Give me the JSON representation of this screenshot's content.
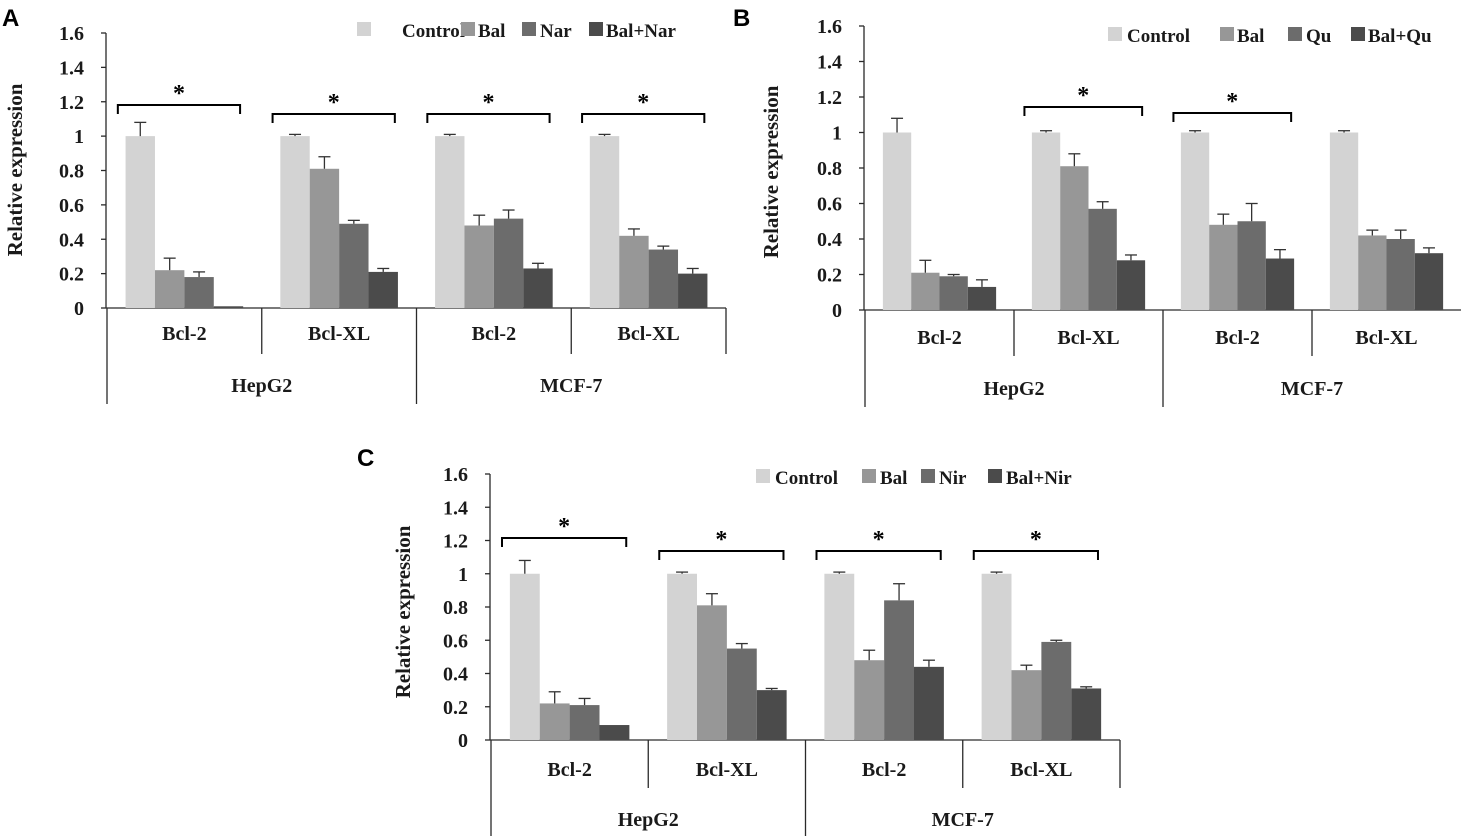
{
  "chart_data": [
    {
      "panel": "A",
      "type": "bar",
      "ylabel": "Relative expression",
      "ylim": [
        0,
        1.6
      ],
      "yticks": [
        "0",
        "0.2",
        "0.4",
        "0.6",
        "0.8",
        "1",
        "1.2",
        "1.4",
        "1.6"
      ],
      "legend": [
        "Control",
        "Bal",
        "Nar",
        "Bal+Nar"
      ],
      "groups": [
        "HepG2",
        "MCF-7"
      ],
      "categories": [
        "Bcl-2",
        "Bcl-XL",
        "Bcl-2",
        "Bcl-XL"
      ],
      "values": [
        [
          1.0,
          0.22,
          0.18,
          0.01
        ],
        [
          1.0,
          0.81,
          0.49,
          0.21
        ],
        [
          1.0,
          0.48,
          0.52,
          0.23
        ],
        [
          1.0,
          0.42,
          0.34,
          0.2
        ]
      ],
      "errors": [
        [
          0.08,
          0.07,
          0.03,
          0.0
        ],
        [
          0.01,
          0.07,
          0.02,
          0.02
        ],
        [
          0.01,
          0.06,
          0.05,
          0.03
        ],
        [
          0.01,
          0.04,
          0.02,
          0.03
        ]
      ],
      "significance": [
        "*",
        "*",
        "*",
        "*"
      ]
    },
    {
      "panel": "B",
      "type": "bar",
      "ylabel": "Relative expression",
      "ylim": [
        0,
        1.6
      ],
      "yticks": [
        "0",
        "0.2",
        "0.4",
        "0.6",
        "0.8",
        "1",
        "1.2",
        "1.4",
        "1.6"
      ],
      "legend": [
        "Control",
        "Bal",
        "Qu",
        "Bal+Qu"
      ],
      "groups": [
        "HepG2",
        "MCF-7"
      ],
      "categories": [
        "Bcl-2",
        "Bcl-XL",
        "Bcl-2",
        "Bcl-XL"
      ],
      "values": [
        [
          1.0,
          0.21,
          0.19,
          0.13
        ],
        [
          1.0,
          0.81,
          0.57,
          0.28
        ],
        [
          1.0,
          0.48,
          0.5,
          0.29
        ],
        [
          1.0,
          0.42,
          0.4,
          0.32
        ]
      ],
      "errors": [
        [
          0.08,
          0.07,
          0.01,
          0.04
        ],
        [
          0.01,
          0.07,
          0.04,
          0.03
        ],
        [
          0.01,
          0.06,
          0.1,
          0.05
        ],
        [
          0.01,
          0.03,
          0.05,
          0.03
        ]
      ],
      "significance": [
        "",
        "*",
        "*",
        ""
      ]
    },
    {
      "panel": "C",
      "type": "bar",
      "ylabel": "Relative expression",
      "ylim": [
        0,
        1.6
      ],
      "yticks": [
        "0",
        "0.2",
        "0.4",
        "0.6",
        "0.8",
        "1",
        "1.2",
        "1.4",
        "1.6"
      ],
      "legend": [
        "Control",
        "Bal",
        "Nir",
        "Bal+Nir"
      ],
      "groups": [
        "HepG2",
        "MCF-7"
      ],
      "categories": [
        "Bcl-2",
        "Bcl-XL",
        "Bcl-2",
        "Bcl-XL"
      ],
      "values": [
        [
          1.0,
          0.22,
          0.21,
          0.09
        ],
        [
          1.0,
          0.81,
          0.55,
          0.3
        ],
        [
          1.0,
          0.48,
          0.84,
          0.44
        ],
        [
          1.0,
          0.42,
          0.59,
          0.31
        ]
      ],
      "errors": [
        [
          0.08,
          0.07,
          0.04,
          0.0
        ],
        [
          0.01,
          0.07,
          0.03,
          0.01
        ],
        [
          0.01,
          0.06,
          0.1,
          0.04
        ],
        [
          0.01,
          0.03,
          0.01,
          0.01
        ]
      ],
      "significance": [
        "*",
        "*",
        "*",
        "*"
      ]
    }
  ],
  "colors": {
    "series": [
      "#d3d3d3",
      "#979797",
      "#6c6c6c",
      "#4b4b4b"
    ]
  }
}
